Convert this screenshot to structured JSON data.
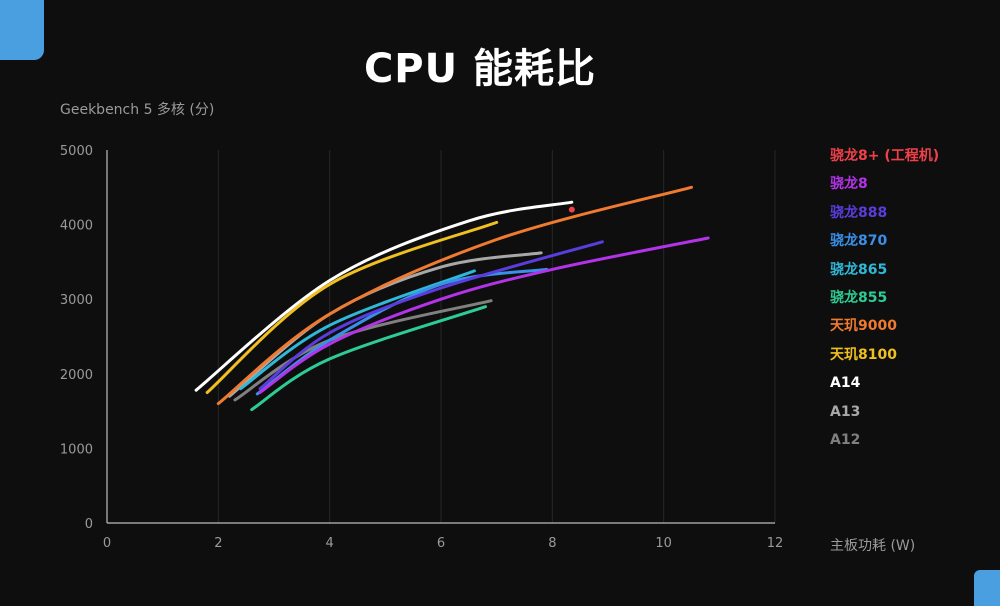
{
  "chart_data": {
    "type": "line",
    "title": "CPU 能耗比",
    "xlabel": "主板功耗 (W)",
    "ylabel": "Geekbench 5 多核 (分)",
    "xlim": [
      0,
      12
    ],
    "ylim": [
      0,
      5000
    ],
    "xticks": [
      "0",
      "2",
      "4",
      "6",
      "8",
      "10",
      "12"
    ],
    "yticks": [
      "0",
      "1000",
      "2000",
      "3000",
      "4000",
      "5000"
    ],
    "grid": true,
    "legend_position": "right",
    "series": [
      {
        "name": "骁龙8+ (工程机)",
        "color": "#f0404a",
        "points": [
          [
            8.35,
            4200
          ]
        ]
      },
      {
        "name": "骁龙8",
        "color": "#b233e8",
        "points": [
          [
            2.75,
            1750
          ],
          [
            4.0,
            2400
          ],
          [
            6.0,
            3000
          ],
          [
            8.0,
            3400
          ],
          [
            10.8,
            3820
          ]
        ]
      },
      {
        "name": "骁龙888",
        "color": "#5a3ddc",
        "points": [
          [
            2.75,
            1800
          ],
          [
            4.0,
            2550
          ],
          [
            6.0,
            3150
          ],
          [
            8.9,
            3770
          ]
        ]
      },
      {
        "name": "骁龙870",
        "color": "#3a8fe8",
        "points": [
          [
            2.7,
            1730
          ],
          [
            4.0,
            2450
          ],
          [
            6.0,
            3200
          ],
          [
            7.9,
            3400
          ]
        ]
      },
      {
        "name": "骁龙865",
        "color": "#30b8d8",
        "points": [
          [
            2.4,
            1800
          ],
          [
            4.0,
            2650
          ],
          [
            6.6,
            3380
          ]
        ]
      },
      {
        "name": "骁龙855",
        "color": "#2ecc95",
        "points": [
          [
            2.6,
            1520
          ],
          [
            4.0,
            2200
          ],
          [
            6.8,
            2900
          ]
        ]
      },
      {
        "name": "天玑9000",
        "color": "#f07a30",
        "points": [
          [
            2.0,
            1600
          ],
          [
            4.0,
            2800
          ],
          [
            7.0,
            3800
          ],
          [
            10.5,
            4500
          ]
        ]
      },
      {
        "name": "天玑8100",
        "color": "#f0c020",
        "points": [
          [
            1.8,
            1750
          ],
          [
            4.0,
            3200
          ],
          [
            7.0,
            4030
          ]
        ]
      },
      {
        "name": "A14",
        "color": "#ffffff",
        "points": [
          [
            1.6,
            1780
          ],
          [
            4.0,
            3250
          ],
          [
            6.5,
            4050
          ],
          [
            8.35,
            4300
          ]
        ]
      },
      {
        "name": "A13",
        "color": "#a8a8a8",
        "points": [
          [
            2.2,
            1700
          ],
          [
            4.0,
            2800
          ],
          [
            6.0,
            3430
          ],
          [
            7.8,
            3620
          ]
        ]
      },
      {
        "name": "A12",
        "color": "#808080",
        "points": [
          [
            2.3,
            1650
          ],
          [
            4.0,
            2450
          ],
          [
            6.9,
            2980
          ]
        ]
      }
    ]
  }
}
